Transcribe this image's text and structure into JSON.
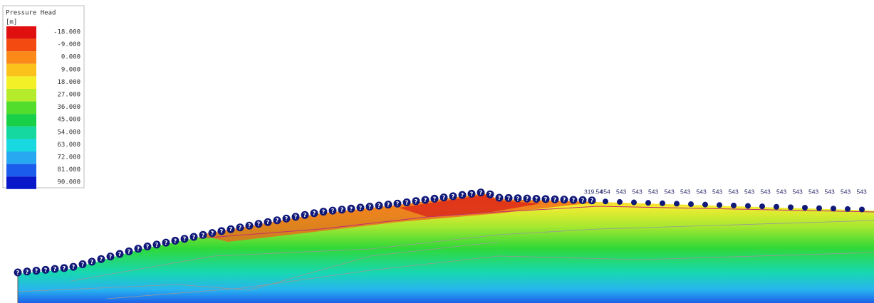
{
  "chart_data": {
    "type": "contour",
    "colorbar": {
      "title": "Pressure Head",
      "unit": "[m]",
      "ticks": [
        {
          "value": -18,
          "label": "-18.000",
          "color": "#e01010"
        },
        {
          "value": -9,
          "label": "-9.000",
          "color": "#f24a10"
        },
        {
          "value": 0,
          "label": "0.000",
          "color": "#fb8a18"
        },
        {
          "value": 9,
          "label": "9.000",
          "color": "#fcc21c"
        },
        {
          "value": 18,
          "label": "18.000",
          "color": "#f4f028"
        },
        {
          "value": 27,
          "label": "27.000",
          "color": "#b4ec2c"
        },
        {
          "value": 36,
          "label": "36.000",
          "color": "#52dc2c"
        },
        {
          "value": 45,
          "label": "45.000",
          "color": "#18d048"
        },
        {
          "value": 54,
          "label": "54.000",
          "color": "#14d8a0"
        },
        {
          "value": 63,
          "label": "63.000",
          "color": "#18d8e0"
        },
        {
          "value": 72,
          "label": "72.000",
          "color": "#28a8f0"
        },
        {
          "value": 81,
          "label": "81.000",
          "color": "#1c5cec"
        },
        {
          "value": 90,
          "label": "90.000",
          "color": "#0818c8"
        }
      ]
    },
    "marker_text": "?",
    "node_labels": [
      "319.54",
      "454",
      "543",
      "543",
      "543",
      "543",
      "543",
      "543",
      "543",
      "543",
      "543",
      "543",
      "543",
      "543",
      "543",
      "543",
      "543",
      "543"
    ]
  }
}
